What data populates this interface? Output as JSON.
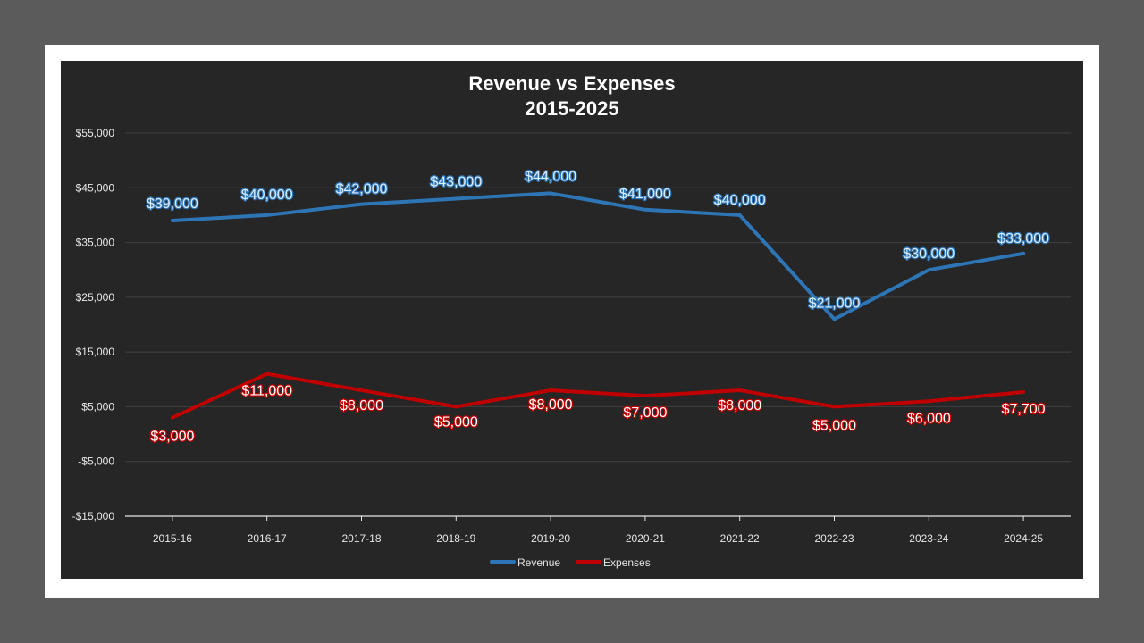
{
  "chart_data": {
    "type": "line",
    "title": "Revenue vs Expenses",
    "subtitle": "2015-2025",
    "xlabel": "",
    "ylabel": "",
    "categories": [
      "2015-16",
      "2016-17",
      "2017-18",
      "2018-19",
      "2019-20",
      "2020-21",
      "2021-22",
      "2022-23",
      "2023-24",
      "2024-25"
    ],
    "ylim": [
      -15000,
      55000
    ],
    "yticks": [
      -15000,
      -5000,
      5000,
      15000,
      25000,
      35000,
      45000,
      55000
    ],
    "ytick_labels": [
      "-$15,000",
      "-$5,000",
      "$5,000",
      "$15,000",
      "$25,000",
      "$35,000",
      "$45,000",
      "$55,000"
    ],
    "grid": true,
    "legend_position": "bottom",
    "series": [
      {
        "name": "Revenue",
        "color": "#2e75b6",
        "label_fill": "#ddeeff",
        "values": [
          39000,
          40000,
          42000,
          43000,
          44000,
          41000,
          40000,
          21000,
          30000,
          33000
        ],
        "labels": [
          "$39,000",
          "$40,000",
          "$42,000",
          "$43,000",
          "$44,000",
          "$41,000",
          "$40,000",
          "$21,000",
          "$30,000",
          "$33,000"
        ]
      },
      {
        "name": "Expenses",
        "color": "#c00000",
        "label_fill": "#ffffff",
        "values": [
          3000,
          11000,
          8000,
          5000,
          8000,
          7000,
          8000,
          5000,
          6000,
          7700
        ],
        "labels": [
          "$3,000",
          "$11,000",
          "$8,000",
          "$5,000",
          "$8,000",
          "$7,000",
          "$8,000",
          "$5,000",
          "$6,000",
          "$7,700"
        ]
      }
    ]
  },
  "colors": {
    "background": "#5b5b5b",
    "frame": "#ffffff",
    "plot_bg": "#262626"
  }
}
